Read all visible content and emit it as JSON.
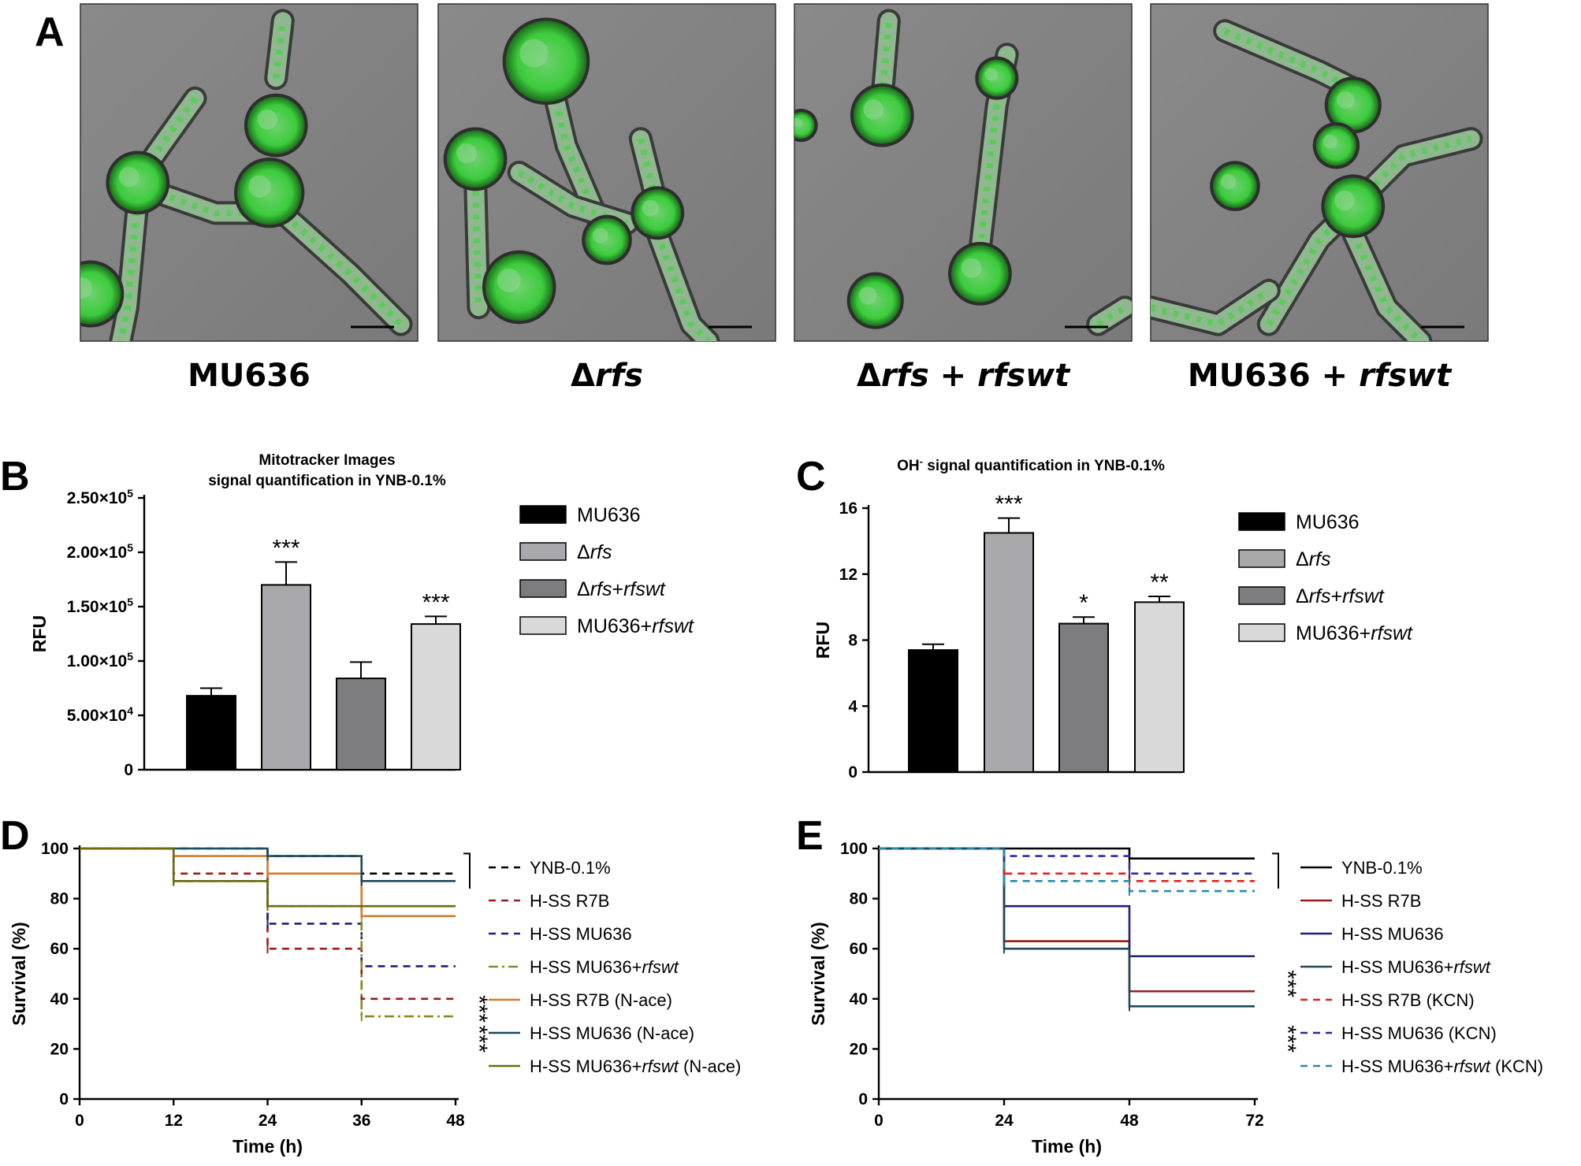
{
  "panel_letters": {
    "a": "A",
    "b": "B",
    "c": "C",
    "d": "D",
    "e": "E"
  },
  "images": [
    {
      "caption_html": "MU636"
    },
    {
      "caption_html": "Δ<i>rfs</i>"
    },
    {
      "caption_html": "Δ<i>rfs</i> + <i>rfswt</i>"
    },
    {
      "caption_html": "MU636 + <i>rfswt</i>"
    }
  ],
  "colors": {
    "black": "#000000",
    "grey_mid": "#a9a9ab",
    "grey_dark": "#7d7d7f",
    "grey_light": "#d9d9d9",
    "green": "#33ff33",
    "red": "#9b1c1c",
    "navy": "#1f1f7a",
    "olive": "#8a8a1e",
    "orange": "#d17c28",
    "teal": "#1e4a5a",
    "bright_red": "#e02222",
    "blue_dash": "#2a2aa0",
    "teal_dash": "#2a8aa8"
  },
  "chart_data": [
    {
      "id": "B",
      "type": "bar",
      "title": [
        "Mitotracker Images",
        "signal quantification in YNB-0.1%"
      ],
      "ylabel": "RFU",
      "ylim": [
        0,
        250000
      ],
      "yticks": [
        0,
        50000,
        100000,
        150000,
        200000,
        250000
      ],
      "yticklabels": [
        "0",
        "5.00×10",
        "1.00×10",
        "1.50×10",
        "2.00×10",
        "2.50×10"
      ],
      "ytick_exponents": [
        "",
        "4",
        "5",
        "5",
        "5",
        "5"
      ],
      "categories": [
        "MU636",
        "Δrfs",
        "Δrfs+rfswt",
        "MU636+rfswt"
      ],
      "legend_html": [
        "MU636",
        "Δ<i>rfs</i>",
        "Δ<i>rfs</i>+<i>rfswt</i>",
        "MU636+<i>rfswt</i>"
      ],
      "values": [
        68000,
        170000,
        84000,
        134000
      ],
      "errors": [
        7000,
        21000,
        15000,
        7000
      ],
      "annotations": [
        "",
        "***",
        "",
        "***"
      ],
      "colors": [
        "#000000",
        "#a9a9ab",
        "#7d7d7f",
        "#d9d9d9"
      ]
    },
    {
      "id": "C",
      "type": "bar",
      "title_html": "OH<tspan baseline-shift='super' font-size='13'>-</tspan> signal quantification in YNB-0.1%",
      "ylabel": "RFU",
      "ylim": [
        0,
        16
      ],
      "yticks": [
        0,
        4,
        8,
        12,
        16
      ],
      "yticklabels": [
        "0",
        "4",
        "8",
        "12",
        "16"
      ],
      "categories": [
        "MU636",
        "Δrfs",
        "Δrfs+rfswt",
        "MU636+rfswt"
      ],
      "legend_html": [
        "MU636",
        "Δ<i>rfs</i>",
        "Δ<i>rfs</i>+<i>rfswt</i>",
        "MU636+<i>rfswt</i>"
      ],
      "values": [
        7.4,
        14.5,
        9.0,
        10.3
      ],
      "errors": [
        0.35,
        0.9,
        0.4,
        0.35
      ],
      "annotations": [
        "",
        "***",
        "*",
        "**"
      ],
      "colors": [
        "#000000",
        "#a9a9ab",
        "#7d7d7f",
        "#d9d9d9"
      ]
    },
    {
      "id": "D",
      "type": "line",
      "subtype": "step-survival",
      "xlabel": "Time (h)",
      "ylabel": "Survival (%)",
      "xlim": [
        0,
        48
      ],
      "ylim": [
        0,
        100
      ],
      "xticks": [
        0,
        12,
        24,
        36,
        48
      ],
      "yticks": [
        0,
        20,
        40,
        60,
        80,
        100
      ],
      "series": [
        {
          "name_html": "YNB-0.1%",
          "color": "#000000",
          "dash": "dashed",
          "x": [
            0,
            12,
            24,
            36,
            48
          ],
          "y": [
            100,
            100,
            97,
            90,
            90
          ]
        },
        {
          "name_html": "H-SS R7B",
          "color": "#9b1c1c",
          "dash": "dashed",
          "x": [
            0,
            12,
            24,
            36,
            48
          ],
          "y": [
            100,
            90,
            60,
            40,
            40
          ]
        },
        {
          "name_html": "H-SS MU636",
          "color": "#1f1f7a",
          "dash": "dashed",
          "x": [
            0,
            12,
            24,
            36,
            48
          ],
          "y": [
            100,
            87,
            70,
            53,
            53
          ]
        },
        {
          "name_html": "H-SS MU636+<i>rfswt</i>",
          "color": "#8a8a1e",
          "dash": "dashdot",
          "x": [
            0,
            12,
            24,
            36,
            48
          ],
          "y": [
            100,
            87,
            77,
            33,
            33
          ]
        },
        {
          "name_html": "H-SS R7B (N-ace)",
          "color": "#d17c28",
          "dash": "solid",
          "x": [
            0,
            12,
            24,
            36,
            48
          ],
          "y": [
            100,
            97,
            90,
            73,
            73
          ]
        },
        {
          "name_html": "H-SS MU636 (N-ace)",
          "color": "#1e4a5a",
          "dash": "solid",
          "x": [
            0,
            12,
            24,
            36,
            48
          ],
          "y": [
            100,
            100,
            97,
            87,
            87
          ]
        },
        {
          "name_html": "H-SS MU636+<i>rfswt</i> (N-ace)",
          "color": "#6b6b10",
          "dash": "solid",
          "x": [
            0,
            12,
            24,
            36,
            48
          ],
          "y": [
            100,
            87,
            77,
            77,
            77
          ]
        }
      ],
      "annotations": [
        "***",
        "***"
      ]
    },
    {
      "id": "E",
      "type": "line",
      "subtype": "step-survival",
      "xlabel": "Time (h)",
      "ylabel": "Survival (%)",
      "xlim": [
        0,
        72
      ],
      "ylim": [
        0,
        100
      ],
      "xticks": [
        0,
        24,
        48,
        72
      ],
      "yticks": [
        0,
        20,
        40,
        60,
        80,
        100
      ],
      "series": [
        {
          "name_html": "YNB-0.1%",
          "color": "#000000",
          "dash": "solid",
          "x": [
            0,
            24,
            48,
            72
          ],
          "y": [
            100,
            100,
            96,
            96
          ]
        },
        {
          "name_html": "H-SS R7B",
          "color": "#9b1c1c",
          "dash": "solid",
          "x": [
            0,
            24,
            48,
            72
          ],
          "y": [
            100,
            63,
            43,
            43
          ]
        },
        {
          "name_html": "H-SS MU636",
          "color": "#1f1f7a",
          "dash": "solid",
          "x": [
            0,
            24,
            48,
            72
          ],
          "y": [
            100,
            77,
            57,
            57
          ]
        },
        {
          "name_html": "H-SS MU636+<i>rfswt</i>",
          "color": "#1e4a5a",
          "dash": "solid",
          "x": [
            0,
            24,
            48,
            72
          ],
          "y": [
            100,
            60,
            37,
            37
          ]
        },
        {
          "name_html": "H-SS R7B (KCN)",
          "color": "#e02222",
          "dash": "dashed",
          "x": [
            0,
            24,
            48,
            72
          ],
          "y": [
            100,
            90,
            87,
            87
          ]
        },
        {
          "name_html": "H-SS MU636 (KCN)",
          "color": "#2a2aa0",
          "dash": "dashed",
          "x": [
            0,
            24,
            48,
            72
          ],
          "y": [
            100,
            97,
            90,
            90
          ]
        },
        {
          "name_html": "H-SS MU636+<i>rfswt</i> (KCN)",
          "color": "#2a8aa8",
          "dash": "dashed",
          "x": [
            0,
            24,
            48,
            72
          ],
          "y": [
            100,
            87,
            83,
            83
          ]
        }
      ],
      "annotations": [
        "***",
        "***"
      ]
    }
  ]
}
